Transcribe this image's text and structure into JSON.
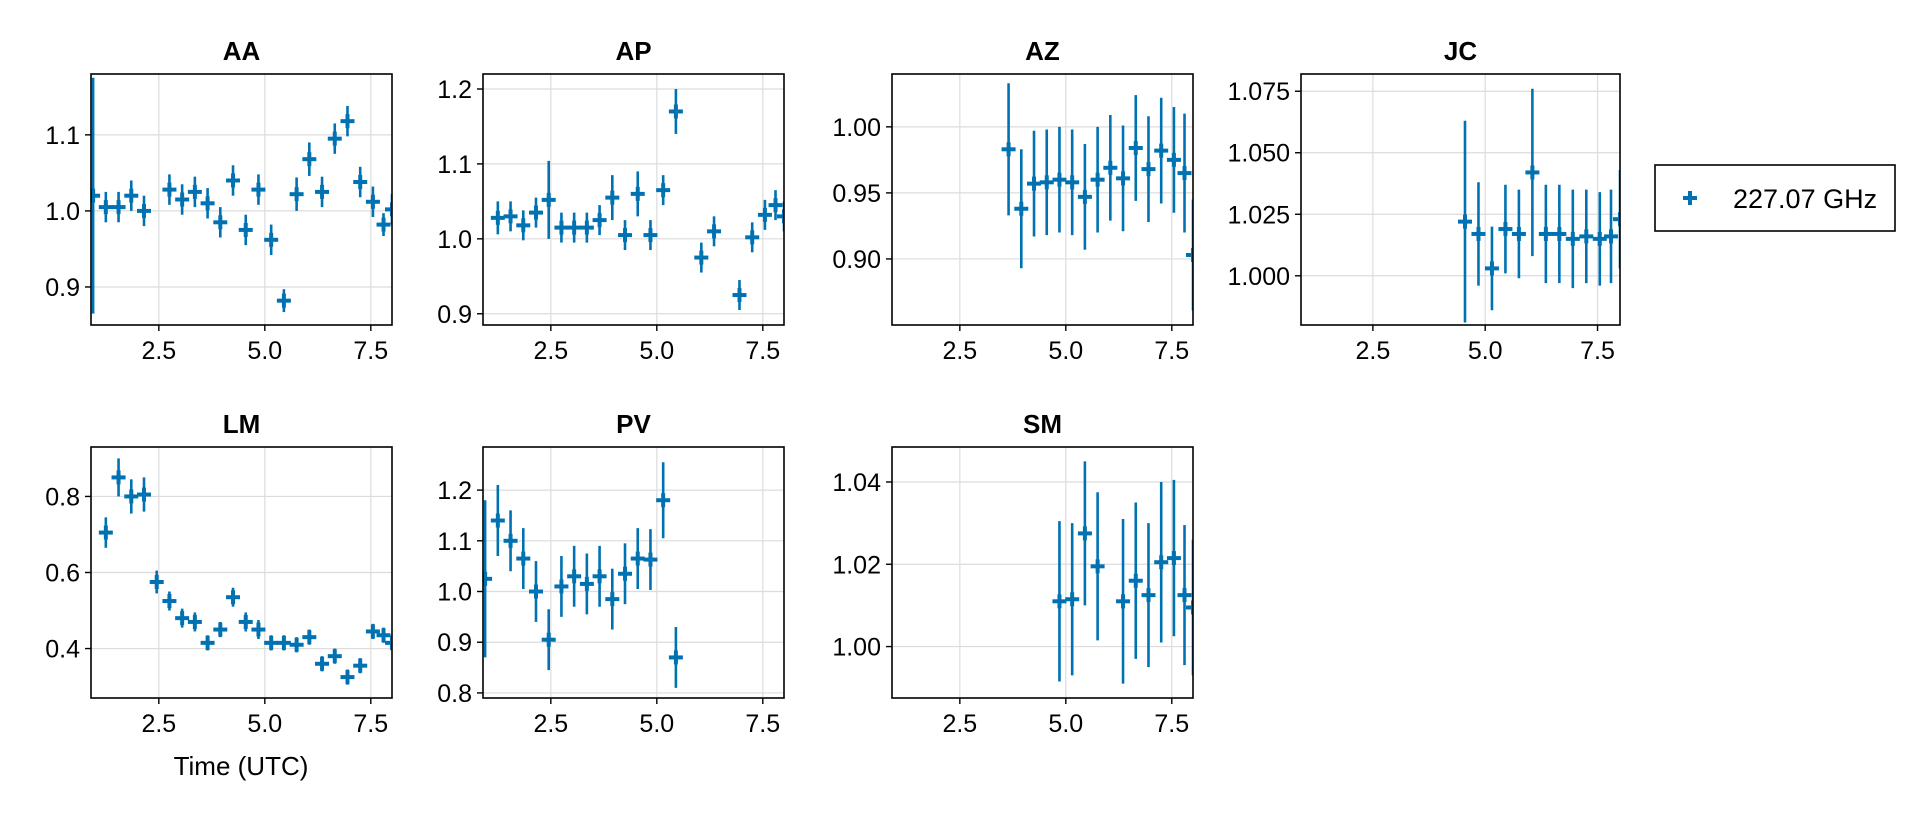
{
  "chart_data": {
    "type": "scatter",
    "xlabel": "Time (UTC)",
    "legend": {
      "placement": "right",
      "entries": [
        {
          "label": "227.07 GHz",
          "color": "#0072b2",
          "marker": "plus"
        }
      ]
    },
    "grid": true,
    "panels": [
      {
        "title": "AA",
        "xlim": [
          0.9,
          8.0
        ],
        "ylim": [
          0.85,
          1.18
        ],
        "xticks": [
          2.5,
          5.0,
          7.5
        ],
        "xtick_labels": [
          "2.5",
          "5.0",
          "7.5"
        ],
        "yticks": [
          0.9,
          1.0,
          1.1
        ],
        "ytick_labels": [
          "0.9",
          "1.0",
          "1.1"
        ],
        "points": [
          {
            "x": 0.95,
            "y": 1.02,
            "err": 0.155
          },
          {
            "x": 1.25,
            "y": 1.005,
            "err": 0.02
          },
          {
            "x": 1.55,
            "y": 1.005,
            "err": 0.02
          },
          {
            "x": 1.85,
            "y": 1.02,
            "err": 0.02
          },
          {
            "x": 2.15,
            "y": 1.0,
            "err": 0.02
          },
          {
            "x": 2.75,
            "y": 1.028,
            "err": 0.02
          },
          {
            "x": 3.05,
            "y": 1.015,
            "err": 0.02
          },
          {
            "x": 3.35,
            "y": 1.025,
            "err": 0.02
          },
          {
            "x": 3.65,
            "y": 1.01,
            "err": 0.02
          },
          {
            "x": 3.95,
            "y": 0.985,
            "err": 0.02
          },
          {
            "x": 4.25,
            "y": 1.04,
            "err": 0.02
          },
          {
            "x": 4.55,
            "y": 0.975,
            "err": 0.02
          },
          {
            "x": 4.85,
            "y": 1.028,
            "err": 0.02
          },
          {
            "x": 5.15,
            "y": 0.962,
            "err": 0.02
          },
          {
            "x": 5.45,
            "y": 0.882,
            "err": 0.015
          },
          {
            "x": 5.75,
            "y": 1.022,
            "err": 0.022
          },
          {
            "x": 6.05,
            "y": 1.068,
            "err": 0.022
          },
          {
            "x": 6.35,
            "y": 1.025,
            "err": 0.02
          },
          {
            "x": 6.65,
            "y": 1.095,
            "err": 0.02
          },
          {
            "x": 6.95,
            "y": 1.118,
            "err": 0.02
          },
          {
            "x": 7.25,
            "y": 1.038,
            "err": 0.02
          },
          {
            "x": 7.55,
            "y": 1.012,
            "err": 0.02
          },
          {
            "x": 7.8,
            "y": 0.982,
            "err": 0.015
          },
          {
            "x": 8.0,
            "y": 1.002,
            "err": 0.02
          }
        ]
      },
      {
        "title": "AP",
        "xlim": [
          0.9,
          8.0
        ],
        "ylim": [
          0.885,
          1.22
        ],
        "xticks": [
          2.5,
          5.0,
          7.5
        ],
        "xtick_labels": [
          "2.5",
          "5.0",
          "7.5"
        ],
        "yticks": [
          0.9,
          1.0,
          1.1,
          1.2
        ],
        "ytick_labels": [
          "0.9",
          "1.0",
          "1.1",
          "1.2"
        ],
        "points": [
          {
            "x": 1.25,
            "y": 1.028,
            "err": 0.022
          },
          {
            "x": 1.55,
            "y": 1.03,
            "err": 0.02
          },
          {
            "x": 1.85,
            "y": 1.018,
            "err": 0.02
          },
          {
            "x": 2.15,
            "y": 1.035,
            "err": 0.02
          },
          {
            "x": 2.45,
            "y": 1.052,
            "err": 0.052
          },
          {
            "x": 2.75,
            "y": 1.015,
            "err": 0.02
          },
          {
            "x": 3.05,
            "y": 1.015,
            "err": 0.02
          },
          {
            "x": 3.35,
            "y": 1.015,
            "err": 0.02
          },
          {
            "x": 3.65,
            "y": 1.025,
            "err": 0.02
          },
          {
            "x": 3.95,
            "y": 1.055,
            "err": 0.03
          },
          {
            "x": 4.25,
            "y": 1.005,
            "err": 0.02
          },
          {
            "x": 4.55,
            "y": 1.06,
            "err": 0.03
          },
          {
            "x": 4.85,
            "y": 1.005,
            "err": 0.02
          },
          {
            "x": 5.15,
            "y": 1.065,
            "err": 0.02
          },
          {
            "x": 5.45,
            "y": 1.17,
            "err": 0.03
          },
          {
            "x": 6.05,
            "y": 0.975,
            "err": 0.02
          },
          {
            "x": 6.35,
            "y": 1.01,
            "err": 0.02
          },
          {
            "x": 6.95,
            "y": 0.925,
            "err": 0.02
          },
          {
            "x": 7.25,
            "y": 1.002,
            "err": 0.02
          },
          {
            "x": 7.55,
            "y": 1.032,
            "err": 0.02
          },
          {
            "x": 7.8,
            "y": 1.045,
            "err": 0.02
          },
          {
            "x": 8.0,
            "y": 1.03,
            "err": 0.02
          }
        ]
      },
      {
        "title": "AZ",
        "xlim": [
          0.9,
          8.0
        ],
        "ylim": [
          0.85,
          1.04
        ],
        "xticks": [
          2.5,
          5.0,
          7.5
        ],
        "xtick_labels": [
          "2.5",
          "5.0",
          "7.5"
        ],
        "yticks": [
          0.9,
          0.95,
          1.0
        ],
        "ytick_labels": [
          "0.90",
          "0.95",
          "1.00"
        ],
        "points": [
          {
            "x": 3.65,
            "y": 0.983,
            "err": 0.05
          },
          {
            "x": 3.95,
            "y": 0.938,
            "err": 0.045
          },
          {
            "x": 4.25,
            "y": 0.957,
            "err": 0.04
          },
          {
            "x": 4.55,
            "y": 0.958,
            "err": 0.04
          },
          {
            "x": 4.85,
            "y": 0.96,
            "err": 0.04
          },
          {
            "x": 5.15,
            "y": 0.958,
            "err": 0.04
          },
          {
            "x": 5.45,
            "y": 0.947,
            "err": 0.04
          },
          {
            "x": 5.75,
            "y": 0.96,
            "err": 0.04
          },
          {
            "x": 6.05,
            "y": 0.969,
            "err": 0.04
          },
          {
            "x": 6.35,
            "y": 0.961,
            "err": 0.04
          },
          {
            "x": 6.65,
            "y": 0.984,
            "err": 0.04
          },
          {
            "x": 6.95,
            "y": 0.968,
            "err": 0.04
          },
          {
            "x": 7.25,
            "y": 0.982,
            "err": 0.04
          },
          {
            "x": 7.55,
            "y": 0.975,
            "err": 0.04
          },
          {
            "x": 7.8,
            "y": 0.965,
            "err": 0.045
          },
          {
            "x": 8.0,
            "y": 0.903,
            "err": 0.042
          }
        ]
      },
      {
        "title": "JC",
        "xlim": [
          0.9,
          8.0
        ],
        "ylim": [
          0.98,
          1.082
        ],
        "xticks": [
          2.5,
          5.0,
          7.5
        ],
        "xtick_labels": [
          "2.5",
          "5.0",
          "7.5"
        ],
        "yticks": [
          1.0,
          1.025,
          1.05,
          1.075
        ],
        "ytick_labels": [
          "1.000",
          "1.025",
          "1.050",
          "1.075"
        ],
        "points": [
          {
            "x": 4.55,
            "y": 1.022,
            "err": 0.041
          },
          {
            "x": 4.85,
            "y": 1.017,
            "err": 0.021
          },
          {
            "x": 5.15,
            "y": 1.003,
            "err": 0.017
          },
          {
            "x": 5.45,
            "y": 1.019,
            "err": 0.018
          },
          {
            "x": 5.75,
            "y": 1.017,
            "err": 0.018
          },
          {
            "x": 6.05,
            "y": 1.042,
            "err": 0.034
          },
          {
            "x": 6.35,
            "y": 1.017,
            "err": 0.02
          },
          {
            "x": 6.65,
            "y": 1.017,
            "err": 0.02
          },
          {
            "x": 6.95,
            "y": 1.015,
            "err": 0.02
          },
          {
            "x": 7.25,
            "y": 1.016,
            "err": 0.019
          },
          {
            "x": 7.55,
            "y": 1.015,
            "err": 0.019
          },
          {
            "x": 7.8,
            "y": 1.016,
            "err": 0.019
          },
          {
            "x": 8.0,
            "y": 1.023,
            "err": 0.02
          }
        ]
      },
      {
        "title": "LM",
        "xlim": [
          0.9,
          8.0
        ],
        "ylim": [
          0.27,
          0.93
        ],
        "xticks": [
          2.5,
          5.0,
          7.5
        ],
        "xtick_labels": [
          "2.5",
          "5.0",
          "7.5"
        ],
        "yticks": [
          0.4,
          0.6,
          0.8
        ],
        "ytick_labels": [
          "0.4",
          "0.6",
          "0.8"
        ],
        "points": [
          {
            "x": 1.25,
            "y": 0.705,
            "err": 0.04
          },
          {
            "x": 1.55,
            "y": 0.85,
            "err": 0.05
          },
          {
            "x": 1.85,
            "y": 0.8,
            "err": 0.045
          },
          {
            "x": 2.15,
            "y": 0.805,
            "err": 0.045
          },
          {
            "x": 2.45,
            "y": 0.575,
            "err": 0.03
          },
          {
            "x": 2.75,
            "y": 0.525,
            "err": 0.025
          },
          {
            "x": 3.05,
            "y": 0.48,
            "err": 0.025
          },
          {
            "x": 3.35,
            "y": 0.47,
            "err": 0.025
          },
          {
            "x": 3.65,
            "y": 0.415,
            "err": 0.02
          },
          {
            "x": 3.95,
            "y": 0.45,
            "err": 0.02
          },
          {
            "x": 4.25,
            "y": 0.535,
            "err": 0.025
          },
          {
            "x": 4.55,
            "y": 0.47,
            "err": 0.025
          },
          {
            "x": 4.85,
            "y": 0.45,
            "err": 0.025
          },
          {
            "x": 5.15,
            "y": 0.415,
            "err": 0.02
          },
          {
            "x": 5.45,
            "y": 0.415,
            "err": 0.02
          },
          {
            "x": 5.75,
            "y": 0.41,
            "err": 0.02
          },
          {
            "x": 6.05,
            "y": 0.43,
            "err": 0.02
          },
          {
            "x": 6.35,
            "y": 0.36,
            "err": 0.02
          },
          {
            "x": 6.65,
            "y": 0.38,
            "err": 0.02
          },
          {
            "x": 6.95,
            "y": 0.325,
            "err": 0.02
          },
          {
            "x": 7.25,
            "y": 0.355,
            "err": 0.02
          },
          {
            "x": 7.55,
            "y": 0.445,
            "err": 0.02
          },
          {
            "x": 7.8,
            "y": 0.435,
            "err": 0.02
          },
          {
            "x": 8.0,
            "y": 0.415,
            "err": 0.02
          }
        ]
      },
      {
        "title": "PV",
        "xlim": [
          0.9,
          8.0
        ],
        "ylim": [
          0.79,
          1.285
        ],
        "xticks": [
          2.5,
          5.0,
          7.5
        ],
        "xtick_labels": [
          "2.5",
          "5.0",
          "7.5"
        ],
        "yticks": [
          0.8,
          0.9,
          1.0,
          1.1,
          1.2
        ],
        "ytick_labels": [
          "0.8",
          "0.9",
          "1.0",
          "1.1",
          "1.2"
        ],
        "points": [
          {
            "x": 0.95,
            "y": 1.025,
            "err": 0.155
          },
          {
            "x": 1.25,
            "y": 1.14,
            "err": 0.07
          },
          {
            "x": 1.55,
            "y": 1.1,
            "err": 0.06
          },
          {
            "x": 1.85,
            "y": 1.065,
            "err": 0.06
          },
          {
            "x": 2.15,
            "y": 1.0,
            "err": 0.06
          },
          {
            "x": 2.45,
            "y": 0.905,
            "err": 0.06
          },
          {
            "x": 2.75,
            "y": 1.01,
            "err": 0.06
          },
          {
            "x": 3.05,
            "y": 1.03,
            "err": 0.06
          },
          {
            "x": 3.35,
            "y": 1.015,
            "err": 0.06
          },
          {
            "x": 3.65,
            "y": 1.03,
            "err": 0.06
          },
          {
            "x": 3.95,
            "y": 0.985,
            "err": 0.06
          },
          {
            "x": 4.25,
            "y": 1.035,
            "err": 0.06
          },
          {
            "x": 4.55,
            "y": 1.065,
            "err": 0.06
          },
          {
            "x": 4.85,
            "y": 1.063,
            "err": 0.06
          },
          {
            "x": 5.15,
            "y": 1.18,
            "err": 0.075
          },
          {
            "x": 5.45,
            "y": 0.87,
            "err": 0.06
          }
        ]
      },
      {
        "title": "SM",
        "xlim": [
          0.9,
          8.0
        ],
        "ylim": [
          0.9875,
          1.0485
        ],
        "xticks": [
          2.5,
          5.0,
          7.5
        ],
        "xtick_labels": [
          "2.5",
          "5.0",
          "7.5"
        ],
        "yticks": [
          1.0,
          1.02,
          1.04
        ],
        "ytick_labels": [
          "1.00",
          "1.02",
          "1.04"
        ],
        "points": [
          {
            "x": 4.85,
            "y": 1.011,
            "err": 0.0195
          },
          {
            "x": 5.15,
            "y": 1.0115,
            "err": 0.0185
          },
          {
            "x": 5.45,
            "y": 1.0275,
            "err": 0.0175
          },
          {
            "x": 5.75,
            "y": 1.0195,
            "err": 0.018
          },
          {
            "x": 6.35,
            "y": 1.011,
            "err": 0.02
          },
          {
            "x": 6.65,
            "y": 1.016,
            "err": 0.019
          },
          {
            "x": 6.95,
            "y": 1.0125,
            "err": 0.0175
          },
          {
            "x": 7.25,
            "y": 1.0205,
            "err": 0.0195
          },
          {
            "x": 7.55,
            "y": 1.0215,
            "err": 0.019
          },
          {
            "x": 7.8,
            "y": 1.0125,
            "err": 0.017
          },
          {
            "x": 8.0,
            "y": 1.0095,
            "err": 0.0165
          }
        ]
      }
    ]
  }
}
